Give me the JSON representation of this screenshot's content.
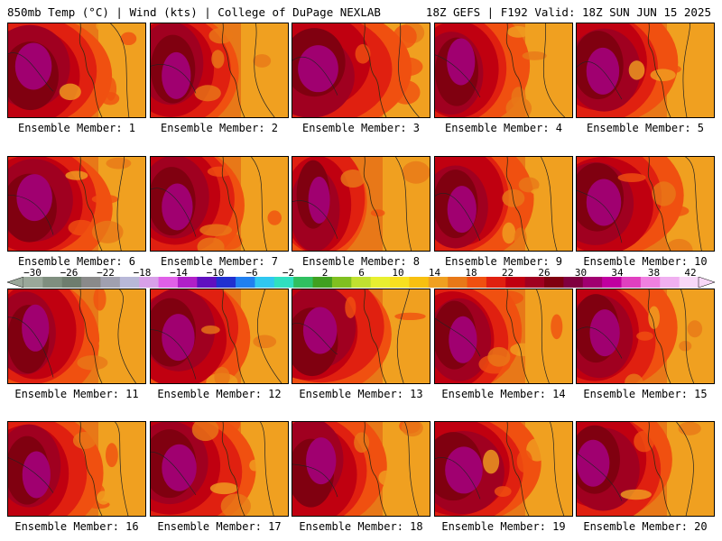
{
  "header": {
    "title_left": "850mb Temp (°C) | Wind (kts) | College of DuPage NEXLAB",
    "title_right": "18Z GEFS | F192 Valid: 18Z SUN JUN 15 2025"
  },
  "members": [
    {
      "label": "Ensemble Member: 1",
      "warmth": 0.78
    },
    {
      "label": "Ensemble Member: 2",
      "warmth": 0.62
    },
    {
      "label": "Ensemble Member: 3",
      "warmth": 0.86
    },
    {
      "label": "Ensemble Member: 4",
      "warmth": 0.6
    },
    {
      "label": "Ensemble Member: 5",
      "warmth": 0.7
    },
    {
      "label": "Ensemble Member: 6",
      "warmth": 0.76
    },
    {
      "label": "Ensemble Member: 7",
      "warmth": 0.66
    },
    {
      "label": "Ensemble Member: 8",
      "warmth": 0.46
    },
    {
      "label": "Ensemble Member: 9",
      "warmth": 0.62
    },
    {
      "label": "Ensemble Member: 10",
      "warmth": 0.74
    },
    {
      "label": "Ensemble Member: 11",
      "warmth": 0.58
    },
    {
      "label": "Ensemble Member: 12",
      "warmth": 0.7
    },
    {
      "label": "Ensemble Member: 13",
      "warmth": 0.72
    },
    {
      "label": "Ensemble Member: 14",
      "warmth": 0.6
    },
    {
      "label": "Ensemble Member: 15",
      "warmth": 0.64
    },
    {
      "label": "Ensemble Member: 16",
      "warmth": 0.6
    },
    {
      "label": "Ensemble Member: 17",
      "warmth": 0.74
    },
    {
      "label": "Ensemble Member: 18",
      "warmth": 0.64
    },
    {
      "label": "Ensemble Member: 19",
      "warmth": 0.8
    },
    {
      "label": "Ensemble Member: 20",
      "warmth": 0.7
    }
  ],
  "colorbar": {
    "tick_labels": [
      "−30",
      "−26",
      "−22",
      "−18",
      "−14",
      "−10",
      "−6",
      "−2",
      "2",
      "6",
      "10",
      "14",
      "18",
      "22",
      "26",
      "30",
      "34",
      "38",
      "42"
    ],
    "colors": [
      "#9aa89a",
      "#7f8f7f",
      "#6e7d6e",
      "#8a8a8a",
      "#a0a0b0",
      "#b8b8d8",
      "#d8a0e8",
      "#e060e8",
      "#b020c8",
      "#6010c0",
      "#2030d0",
      "#2080f0",
      "#30c8f0",
      "#30e0c0",
      "#30c060",
      "#40a020",
      "#80c020",
      "#c0e030",
      "#e8f030",
      "#f8e020",
      "#f8c010",
      "#f0a020",
      "#e87818",
      "#f05010",
      "#e02010",
      "#c00010",
      "#a00020",
      "#800010",
      "#800040",
      "#a00070",
      "#c000a0",
      "#e040c0",
      "#f080e0",
      "#f0b0f0",
      "#f8d8f8"
    ]
  },
  "field_colors": [
    "#f0a020",
    "#e87818",
    "#f05010",
    "#e02010",
    "#c00010",
    "#a00020",
    "#800010",
    "#a00070"
  ]
}
